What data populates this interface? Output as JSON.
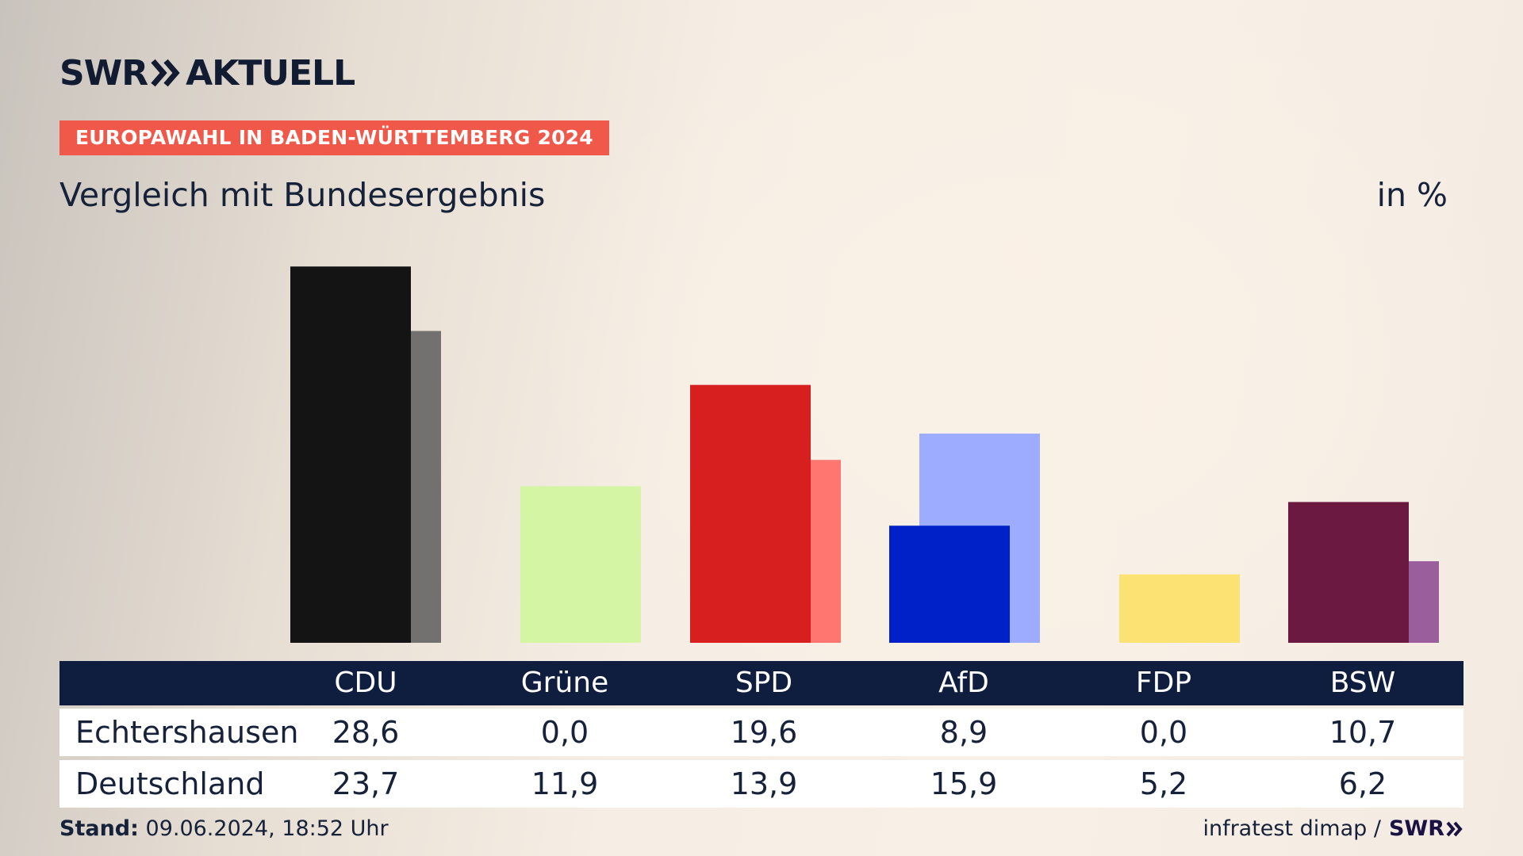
{
  "brand": {
    "logo_left": "SWR",
    "logo_right": "AKTUELL",
    "tag": "EUROPAWAHL IN BADEN-WÜRTTEMBERG 2024"
  },
  "subtitle": "Vergleich mit Bundesergebnis",
  "unit": "in %",
  "chart_data": {
    "type": "bar",
    "categories": [
      "CDU",
      "Grüne",
      "SPD",
      "AfD",
      "FDP",
      "BSW"
    ],
    "series": [
      {
        "name": "Echtershausen",
        "values": [
          28.6,
          0.0,
          19.6,
          8.9,
          0.0,
          10.7
        ]
      },
      {
        "name": "Deutschland",
        "values": [
          23.7,
          11.9,
          13.9,
          15.9,
          5.2,
          6.2
        ]
      }
    ],
    "colors": {
      "primary": [
        "#141414",
        "#d4f5a4",
        "#d81f1f",
        "#0020c8",
        "#fce272",
        "#6b1940"
      ],
      "secondary": [
        "#737170",
        "#d4f5a4",
        "#ff7570",
        "#9dacff",
        "#fce272",
        "#9b5e9d"
      ]
    },
    "ylim": [
      0,
      30
    ]
  },
  "table": {
    "rows": [
      {
        "label": "Echtershausen",
        "values": [
          "28,6",
          "0,0",
          "19,6",
          "8,9",
          "0,0",
          "10,7"
        ]
      },
      {
        "label": "Deutschland",
        "values": [
          "23,7",
          "11,9",
          "13,9",
          "15,9",
          "5,2",
          "6,2"
        ]
      }
    ]
  },
  "footer": {
    "stand_label": "Stand:",
    "stand_value": "09.06.2024, 18:52 Uhr",
    "source": "infratest dimap /",
    "source_brand": "SWR"
  }
}
